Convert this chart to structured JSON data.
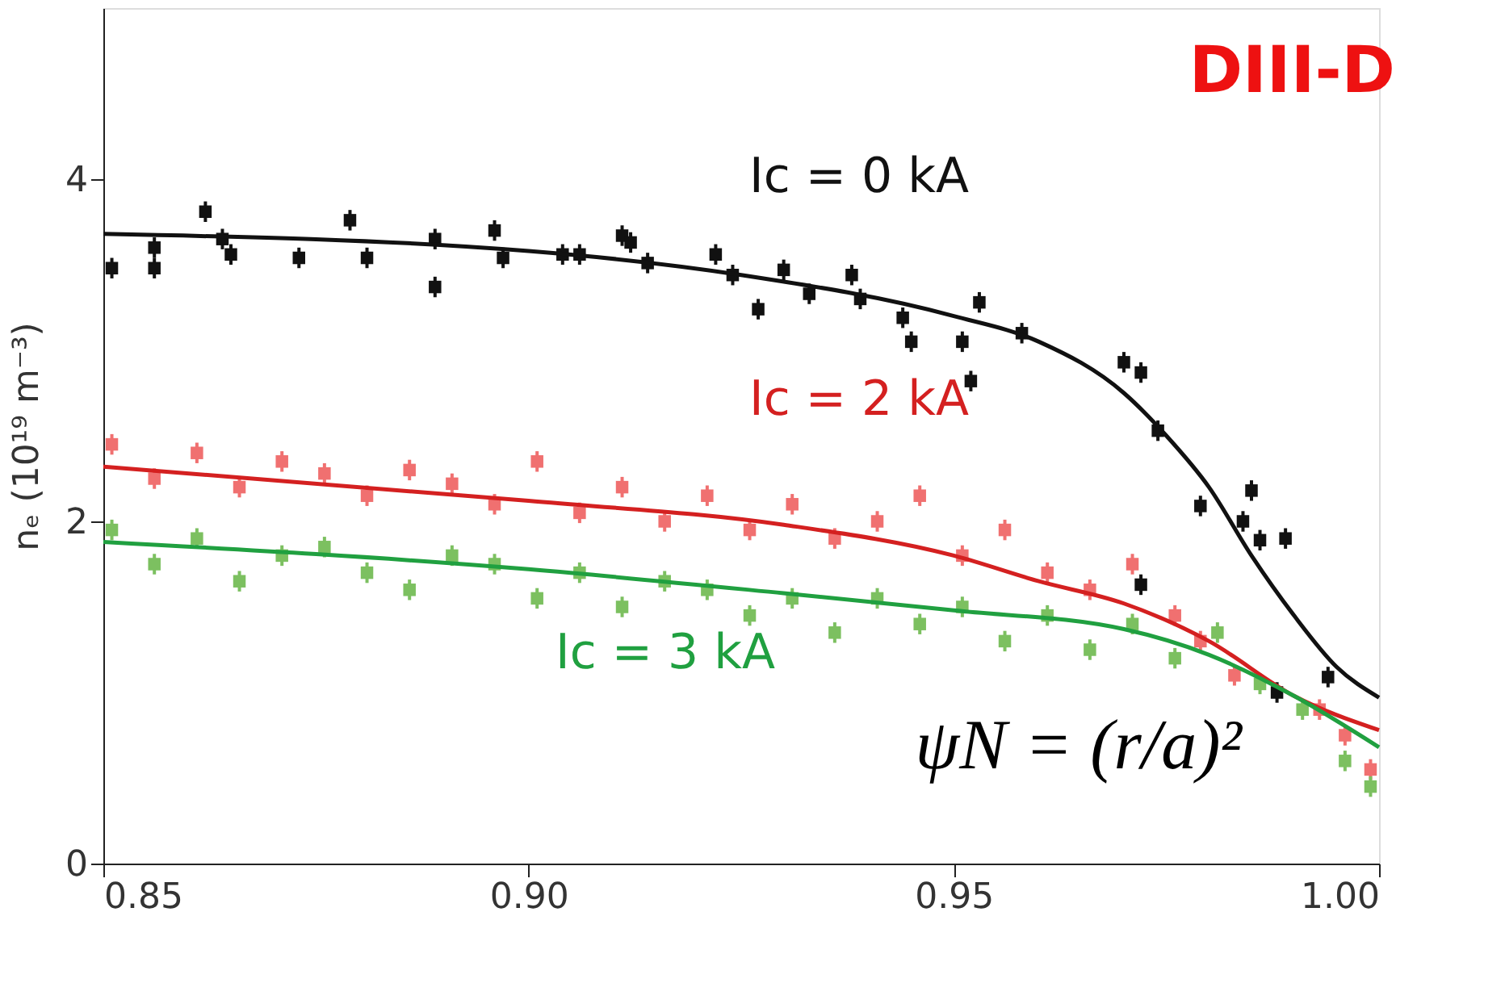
{
  "chart_data": {
    "type": "scatter",
    "ylabel": "nₑ (10¹⁹ m⁻³)",
    "xlim": [
      0.85,
      1.0
    ],
    "xticks": [
      {
        "value": 0.85,
        "label": "0.85"
      },
      {
        "value": 0.9,
        "label": "0.90"
      },
      {
        "value": 0.95,
        "label": "0.95"
      },
      {
        "value": 1.0,
        "label": "1.00"
      }
    ],
    "ylim": [
      0,
      5
    ],
    "yticks": [
      0,
      2,
      4
    ],
    "grid": false,
    "annotations": [
      "DIII-D",
      "ψN = (r/a)²",
      "Ic = 0 kA",
      "Ic = 2 kA",
      "Ic = 3 kA"
    ],
    "series": [
      {
        "marker": "square",
        "color": "#f07070",
        "x": [
          0.851,
          0.856,
          0.861,
          0.866,
          0.871,
          0.876,
          0.881,
          0.886,
          0.891,
          0.896,
          0.901,
          0.906,
          0.911,
          0.916,
          0.921,
          0.926,
          0.931,
          0.936,
          0.941,
          0.946,
          0.951,
          0.956,
          0.961,
          0.966,
          0.971,
          0.976,
          0.979,
          0.983,
          0.993,
          0.996,
          0.999
        ],
        "values": [
          2.45,
          2.25,
          2.4,
          2.2,
          2.35,
          2.28,
          2.15,
          2.3,
          2.22,
          2.1,
          2.35,
          2.05,
          2.2,
          2.0,
          2.15,
          1.95,
          2.1,
          1.9,
          2.0,
          2.15,
          1.8,
          1.95,
          1.7,
          1.6,
          1.75,
          1.45,
          1.3,
          1.1,
          0.9,
          0.75,
          0.55
        ],
        "errors": [
          0.06,
          0.06,
          0.06,
          0.06,
          0.06,
          0.06,
          0.06,
          0.06,
          0.06,
          0.06,
          0.06,
          0.06,
          0.06,
          0.06,
          0.06,
          0.06,
          0.06,
          0.06,
          0.06,
          0.06,
          0.06,
          0.06,
          0.06,
          0.06,
          0.06,
          0.06,
          0.06,
          0.06,
          0.06,
          0.06,
          0.06
        ]
      },
      {
        "marker": "square",
        "color": "#7cc060",
        "x": [
          0.851,
          0.856,
          0.861,
          0.866,
          0.871,
          0.876,
          0.881,
          0.886,
          0.891,
          0.896,
          0.901,
          0.906,
          0.911,
          0.916,
          0.921,
          0.926,
          0.931,
          0.936,
          0.941,
          0.946,
          0.951,
          0.956,
          0.961,
          0.966,
          0.971,
          0.976,
          0.981,
          0.986,
          0.991,
          0.996,
          0.999
        ],
        "values": [
          1.95,
          1.75,
          1.9,
          1.65,
          1.8,
          1.85,
          1.7,
          1.6,
          1.8,
          1.75,
          1.55,
          1.7,
          1.5,
          1.65,
          1.6,
          1.45,
          1.55,
          1.35,
          1.55,
          1.4,
          1.5,
          1.3,
          1.45,
          1.25,
          1.4,
          1.2,
          1.35,
          1.05,
          0.9,
          0.6,
          0.45
        ],
        "errors": [
          0.06,
          0.06,
          0.06,
          0.06,
          0.06,
          0.06,
          0.06,
          0.06,
          0.06,
          0.06,
          0.06,
          0.06,
          0.06,
          0.06,
          0.06,
          0.06,
          0.06,
          0.06,
          0.06,
          0.06,
          0.06,
          0.06,
          0.06,
          0.06,
          0.06,
          0.06,
          0.06,
          0.06,
          0.06,
          0.06,
          0.06
        ]
      },
      {
        "marker": "square",
        "color": "#111111",
        "x": [
          0.851,
          0.856,
          0.856,
          0.862,
          0.864,
          0.865,
          0.873,
          0.879,
          0.881,
          0.889,
          0.889,
          0.896,
          0.897,
          0.904,
          0.906,
          0.911,
          0.912,
          0.914,
          0.922,
          0.924,
          0.927,
          0.93,
          0.933,
          0.938,
          0.939,
          0.944,
          0.945,
          0.951,
          0.952,
          0.953,
          0.958,
          0.97,
          0.972,
          0.974,
          0.979,
          0.984,
          0.985,
          0.986,
          0.989,
          0.988,
          0.994,
          0.972
        ],
        "values": [
          3.48,
          3.48,
          3.6,
          3.81,
          3.65,
          3.56,
          3.54,
          3.76,
          3.54,
          3.65,
          3.37,
          3.7,
          3.54,
          3.56,
          3.56,
          3.67,
          3.63,
          3.51,
          3.56,
          3.44,
          3.24,
          3.47,
          3.33,
          3.44,
          3.3,
          3.19,
          3.05,
          3.05,
          2.82,
          3.28,
          3.1,
          2.93,
          2.87,
          2.53,
          2.09,
          2.0,
          2.18,
          1.89,
          1.9,
          1.0,
          1.09,
          1.63
        ],
        "errors": [
          0.06,
          0.06,
          0.06,
          0.06,
          0.06,
          0.06,
          0.06,
          0.06,
          0.06,
          0.06,
          0.06,
          0.06,
          0.06,
          0.06,
          0.06,
          0.06,
          0.06,
          0.06,
          0.06,
          0.06,
          0.06,
          0.06,
          0.06,
          0.06,
          0.06,
          0.06,
          0.06,
          0.06,
          0.06,
          0.06,
          0.06,
          0.06,
          0.06,
          0.06,
          0.06,
          0.06,
          0.06,
          0.06,
          0.06,
          0.06,
          0.06,
          0.06
        ]
      },
      {
        "type": "line",
        "color": "#d42020",
        "x": [
          0.85,
          0.9,
          0.93,
          0.95,
          0.96,
          0.97,
          0.98,
          0.99,
          1.0
        ],
        "values": [
          2.32,
          2.12,
          1.98,
          1.8,
          1.65,
          1.52,
          1.3,
          0.98,
          0.78
        ]
      },
      {
        "type": "line",
        "color": "#20a040",
        "x": [
          0.85,
          0.9,
          0.93,
          0.95,
          0.97,
          0.98,
          0.99,
          1.0
        ],
        "values": [
          1.88,
          1.72,
          1.58,
          1.48,
          1.37,
          1.22,
          0.98,
          0.68
        ]
      },
      {
        "type": "line",
        "color": "#111111",
        "x": [
          0.85,
          0.9,
          0.925,
          0.95,
          0.96,
          0.97,
          0.975,
          0.98,
          0.985,
          0.99,
          0.995,
          1.0
        ],
        "values": [
          3.68,
          3.58,
          3.44,
          3.2,
          3.05,
          2.75,
          2.5,
          2.2,
          1.8,
          1.45,
          1.15,
          0.97
        ]
      }
    ]
  }
}
